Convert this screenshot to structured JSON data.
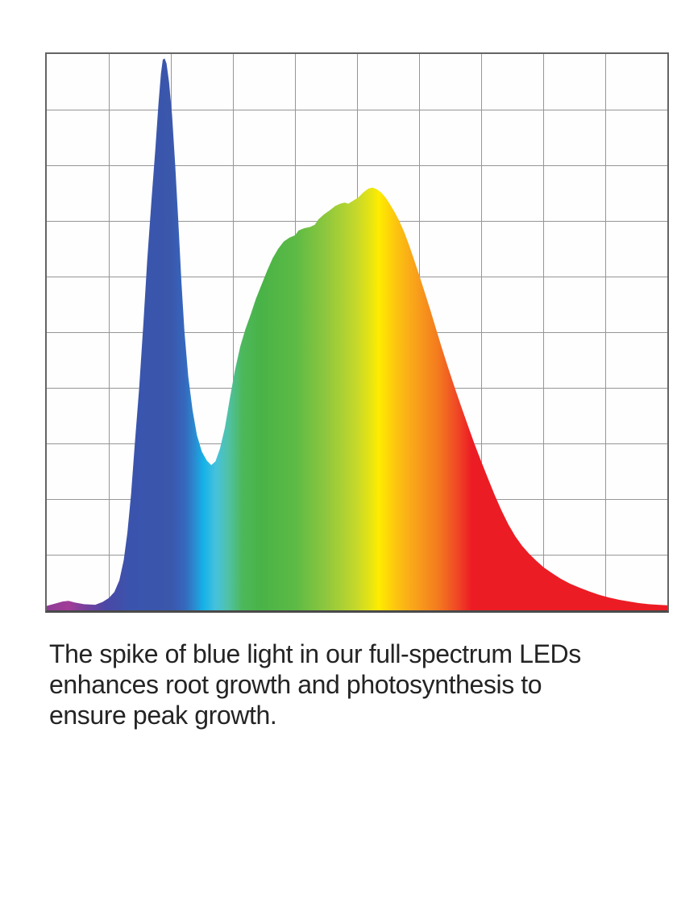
{
  "page": {
    "background_color": "#ffffff"
  },
  "figure": {
    "border_color": "#646464",
    "border_bottom_color": "#4a4a4a",
    "grid": {
      "columns": 10,
      "rows": 10,
      "line_color": "#969696"
    }
  },
  "chart_data": {
    "type": "area",
    "title": "",
    "xlabel": "",
    "ylabel": "",
    "axis_tick_labels": "none shown",
    "legend": "none",
    "grid": "on, 10x10 cells",
    "description": "LED full-spectrum relative intensity curve filled with a rainbow wavelength gradient: narrow blue spike, valley, broad green-yellow-red hump with long red tail",
    "x_unit": "percent of chart width",
    "y_unit": "percent of chart height (relative intensity)",
    "features": {
      "blue_spike_peak": {
        "x_pct": 18.8,
        "y_pct": 99.2
      },
      "valley": {
        "x_pct": 26.5,
        "y_pct": 26.1
      },
      "main_peak": {
        "x_pct": 53.0,
        "y_pct": 76.0
      },
      "left_purple_bump": {
        "x_pct": 3.5,
        "y_pct": 1.7
      }
    },
    "points": [
      [
        0,
        0.8
      ],
      [
        1.3,
        1.2
      ],
      [
        2.6,
        1.6
      ],
      [
        3.5,
        1.7
      ],
      [
        4.5,
        1.4
      ],
      [
        6,
        1.1
      ],
      [
        7.8,
        1.0
      ],
      [
        9,
        1.5
      ],
      [
        10,
        2.2
      ],
      [
        10.9,
        3.3
      ],
      [
        11.7,
        5.4
      ],
      [
        12.4,
        9
      ],
      [
        13,
        14
      ],
      [
        13.6,
        21
      ],
      [
        14.2,
        30
      ],
      [
        14.9,
        40
      ],
      [
        15.6,
        52
      ],
      [
        16.2,
        63
      ],
      [
        16.9,
        74
      ],
      [
        17.5,
        83
      ],
      [
        18,
        91
      ],
      [
        18.4,
        96.5
      ],
      [
        18.7,
        99.0
      ],
      [
        19.0,
        99.2
      ],
      [
        19.3,
        98.3
      ],
      [
        19.7,
        95
      ],
      [
        20.2,
        89
      ],
      [
        20.7,
        80
      ],
      [
        21.2,
        70
      ],
      [
        21.7,
        59
      ],
      [
        22.2,
        50
      ],
      [
        22.8,
        42
      ],
      [
        23.5,
        36
      ],
      [
        24.2,
        31.5
      ],
      [
        25,
        28.5
      ],
      [
        25.8,
        26.9
      ],
      [
        26.5,
        26.1
      ],
      [
        27.2,
        26.8
      ],
      [
        27.9,
        29
      ],
      [
        28.7,
        32.8
      ],
      [
        29.5,
        38
      ],
      [
        30.3,
        43
      ],
      [
        31.2,
        47.5
      ],
      [
        32,
        50.5
      ],
      [
        32.9,
        53.3
      ],
      [
        33.7,
        56
      ],
      [
        34.6,
        58.5
      ],
      [
        35.5,
        61
      ],
      [
        36.4,
        63.3
      ],
      [
        37.3,
        65
      ],
      [
        38.2,
        66.3
      ],
      [
        39.1,
        67
      ],
      [
        40,
        67.4
      ],
      [
        40.6,
        68.3
      ],
      [
        41.5,
        68.7
      ],
      [
        42.4,
        68.9
      ],
      [
        43.2,
        69.3
      ],
      [
        43.8,
        70.3
      ],
      [
        44.7,
        71.2
      ],
      [
        45.6,
        71.9
      ],
      [
        46.5,
        72.7
      ],
      [
        47.3,
        73.1
      ],
      [
        48,
        73.3
      ],
      [
        48.6,
        73.1
      ],
      [
        49.3,
        73.6
      ],
      [
        50.2,
        74.2
      ],
      [
        51,
        75.1
      ],
      [
        51.8,
        75.8
      ],
      [
        52.5,
        76.0
      ],
      [
        53.2,
        75.7
      ],
      [
        53.9,
        75.1
      ],
      [
        54.6,
        74.2
      ],
      [
        55.3,
        73
      ],
      [
        56,
        71.7
      ],
      [
        56.8,
        70
      ],
      [
        57.6,
        68
      ],
      [
        58.4,
        65.6
      ],
      [
        59.2,
        63
      ],
      [
        60,
        60.3
      ],
      [
        60.9,
        57.2
      ],
      [
        61.8,
        54
      ],
      [
        62.7,
        50.7
      ],
      [
        63.6,
        47.4
      ],
      [
        64.6,
        43.9
      ],
      [
        65.6,
        40.5
      ],
      [
        66.7,
        36.9
      ],
      [
        67.8,
        33.4
      ],
      [
        68.9,
        30
      ],
      [
        70,
        26.8
      ],
      [
        71.1,
        23.7
      ],
      [
        72.2,
        20.7
      ],
      [
        73.3,
        17.9
      ],
      [
        74.4,
        15.4
      ],
      [
        75.5,
        13.3
      ],
      [
        76.6,
        11.6
      ],
      [
        77.7,
        10.2
      ],
      [
        78.9,
        8.9
      ],
      [
        80.1,
        7.7
      ],
      [
        81.4,
        6.7
      ],
      [
        82.8,
        5.7
      ],
      [
        84.3,
        4.8
      ],
      [
        85.8,
        4.1
      ],
      [
        87.4,
        3.4
      ],
      [
        89,
        2.8
      ],
      [
        90.6,
        2.3
      ],
      [
        92.2,
        1.9
      ],
      [
        93.8,
        1.6
      ],
      [
        95.4,
        1.3
      ],
      [
        97,
        1.1
      ],
      [
        98.5,
        1.0
      ],
      [
        100,
        0.9
      ]
    ],
    "gradient_stops": [
      {
        "offset": 0.0,
        "color": "#8e3a96"
      },
      {
        "offset": 0.035,
        "color": "#a23d98"
      },
      {
        "offset": 0.06,
        "color": "#7a3f9d"
      },
      {
        "offset": 0.095,
        "color": "#4a48a5"
      },
      {
        "offset": 0.135,
        "color": "#3a54ad"
      },
      {
        "offset": 0.2,
        "color": "#3a57ac"
      },
      {
        "offset": 0.222,
        "color": "#3567bd"
      },
      {
        "offset": 0.238,
        "color": "#2b8ad0"
      },
      {
        "offset": 0.252,
        "color": "#14b1e7"
      },
      {
        "offset": 0.272,
        "color": "#45c1de"
      },
      {
        "offset": 0.292,
        "color": "#4fc2a8"
      },
      {
        "offset": 0.315,
        "color": "#4db85c"
      },
      {
        "offset": 0.345,
        "color": "#49b347"
      },
      {
        "offset": 0.4,
        "color": "#5cba45"
      },
      {
        "offset": 0.45,
        "color": "#8ec73e"
      },
      {
        "offset": 0.5,
        "color": "#c6d92a"
      },
      {
        "offset": 0.525,
        "color": "#ece60f"
      },
      {
        "offset": 0.535,
        "color": "#ffec00"
      },
      {
        "offset": 0.565,
        "color": "#fcc211"
      },
      {
        "offset": 0.6,
        "color": "#f89b1c"
      },
      {
        "offset": 0.63,
        "color": "#f47b1e"
      },
      {
        "offset": 0.66,
        "color": "#ef4a25"
      },
      {
        "offset": 0.685,
        "color": "#ec1c24"
      },
      {
        "offset": 1.0,
        "color": "#ec1c24"
      }
    ]
  },
  "caption": {
    "text": "The spike of blue light in our full-spectrum LEDs enhances root growth and photosynthesis to ensure peak growth.",
    "lines": [
      "The spike of blue light in our full-spectrum LEDs",
      "enhances root growth and photosynthesis to",
      "ensure peak growth."
    ],
    "color": "#242424"
  }
}
